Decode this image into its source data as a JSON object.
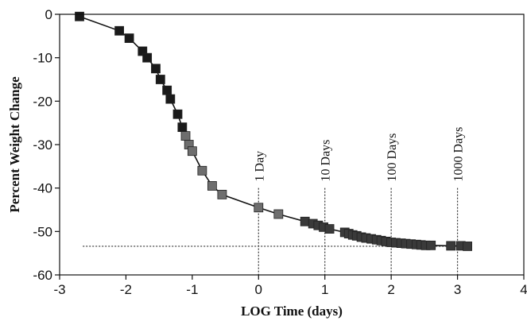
{
  "chart_data": {
    "type": "scatter",
    "xlabel": "LOG Time (days)",
    "ylabel": "Percent Weight Change",
    "xlim": [
      -3,
      4
    ],
    "ylim": [
      -60,
      0
    ],
    "xticks": [
      "-3",
      "-2",
      "-1",
      "0",
      "1",
      "2",
      "3",
      "4"
    ],
    "yticks": [
      "0",
      "-10",
      "-20",
      "-30",
      "-40",
      "-50",
      "-60"
    ],
    "grid": false,
    "marker": "square",
    "series": [
      {
        "x": [
          -2.7,
          -2.1,
          -1.95,
          -1.75,
          -1.68,
          -1.55,
          -1.48,
          -1.38,
          -1.33,
          -1.22,
          -1.15,
          -1.1,
          -1.05,
          -1.0,
          -0.85,
          -0.7,
          -0.55,
          0.0,
          0.3,
          0.7,
          0.82,
          0.9,
          0.98,
          1.07,
          1.3,
          1.36,
          1.42,
          1.48,
          1.55,
          1.62,
          1.7,
          1.78,
          1.85,
          1.92,
          2.0,
          2.07,
          2.15,
          2.22,
          2.3,
          2.38,
          2.45,
          2.52,
          2.6,
          2.9,
          3.05,
          3.15
        ],
        "y": [
          -0.5,
          -3.8,
          -5.5,
          -8.5,
          -10.0,
          -12.5,
          -15.0,
          -17.5,
          -19.5,
          -23.0,
          -26.0,
          -28.0,
          -30.0,
          -31.5,
          -36.0,
          -39.5,
          -41.5,
          -44.5,
          -46.0,
          -47.7,
          -48.2,
          -48.6,
          -49.0,
          -49.4,
          -50.2,
          -50.5,
          -50.8,
          -51.0,
          -51.3,
          -51.5,
          -51.7,
          -51.9,
          -52.1,
          -52.3,
          -52.5,
          -52.6,
          -52.7,
          -52.8,
          -52.9,
          -53.0,
          -53.1,
          -53.2,
          -53.2,
          -53.3,
          -53.3,
          -53.4
        ]
      }
    ],
    "annotations": [
      {
        "label": "1 Day",
        "x": 0
      },
      {
        "label": "10 Days",
        "x": 1
      },
      {
        "label": "100 Days",
        "x": 2
      },
      {
        "label": "1000 Days",
        "x": 3
      }
    ],
    "reference_y": -53.4
  }
}
